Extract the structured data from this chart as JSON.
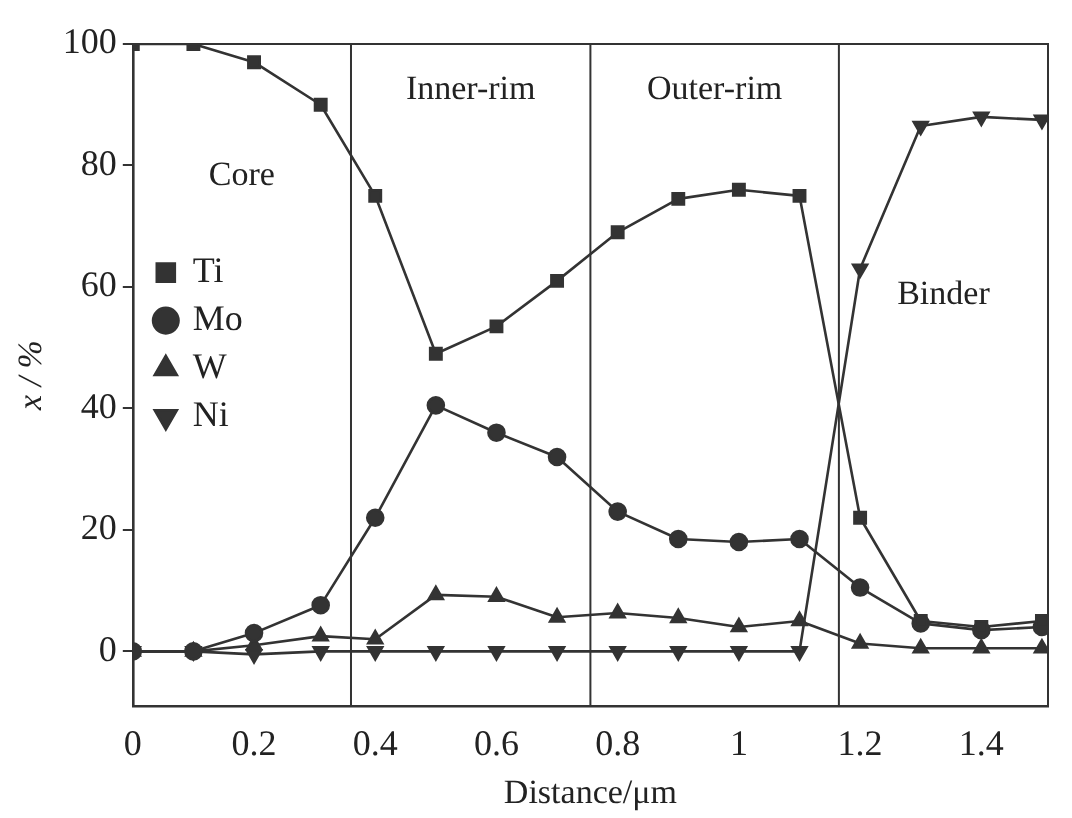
{
  "chart_data": {
    "type": "line",
    "xlabel": "Distance/μm",
    "ylabel": "x / %",
    "x": [
      0,
      0.1,
      0.2,
      0.31,
      0.4,
      0.5,
      0.6,
      0.7,
      0.8,
      0.9,
      1.0,
      1.1,
      1.2,
      1.3,
      1.4,
      1.5
    ],
    "xlim": [
      0,
      1.51
    ],
    "xticks": [
      0,
      0.2,
      0.4,
      0.6,
      0.8,
      1.0,
      1.2,
      1.4
    ],
    "ylim": [
      -9,
      100
    ],
    "yticks": [
      0,
      20,
      40,
      60,
      80,
      100
    ],
    "series": [
      {
        "name": "Ti",
        "color": "#333333",
        "marker": "square",
        "values": [
          100,
          100,
          97,
          90,
          75,
          49,
          53.5,
          61,
          69,
          74.5,
          76,
          75,
          22,
          5,
          4,
          5
        ]
      },
      {
        "name": "Mo",
        "color": "#333333",
        "marker": "circle",
        "values": [
          0,
          0,
          3,
          7.6,
          22,
          40.5,
          36,
          32,
          23,
          18.5,
          18,
          18.5,
          10.5,
          4.6,
          3.5,
          4
        ]
      },
      {
        "name": "W",
        "color": "#333333",
        "marker": "triangle",
        "values": [
          0,
          0,
          1,
          2.5,
          2,
          9.3,
          9,
          5.6,
          6.3,
          5.5,
          4,
          5,
          1.3,
          0.5,
          0.5,
          0.5
        ]
      },
      {
        "name": "Ni",
        "color": "#333333",
        "marker": "triangle_down",
        "values": [
          0,
          0,
          -0.5,
          0,
          0,
          0,
          0,
          0,
          0,
          0,
          0,
          0,
          63,
          86.5,
          88,
          87.5
        ]
      }
    ],
    "ref_lines": [
      {
        "axis": "x",
        "value": 0.36,
        "color": "#333333"
      },
      {
        "axis": "x",
        "value": 0.755,
        "color": "#333333"
      },
      {
        "axis": "x",
        "value": 1.165,
        "color": "#333333"
      }
    ],
    "annotations": [
      "Core",
      "Inner-rim",
      "Outer-rim",
      "Binder"
    ],
    "legend": "left",
    "grid": false
  }
}
